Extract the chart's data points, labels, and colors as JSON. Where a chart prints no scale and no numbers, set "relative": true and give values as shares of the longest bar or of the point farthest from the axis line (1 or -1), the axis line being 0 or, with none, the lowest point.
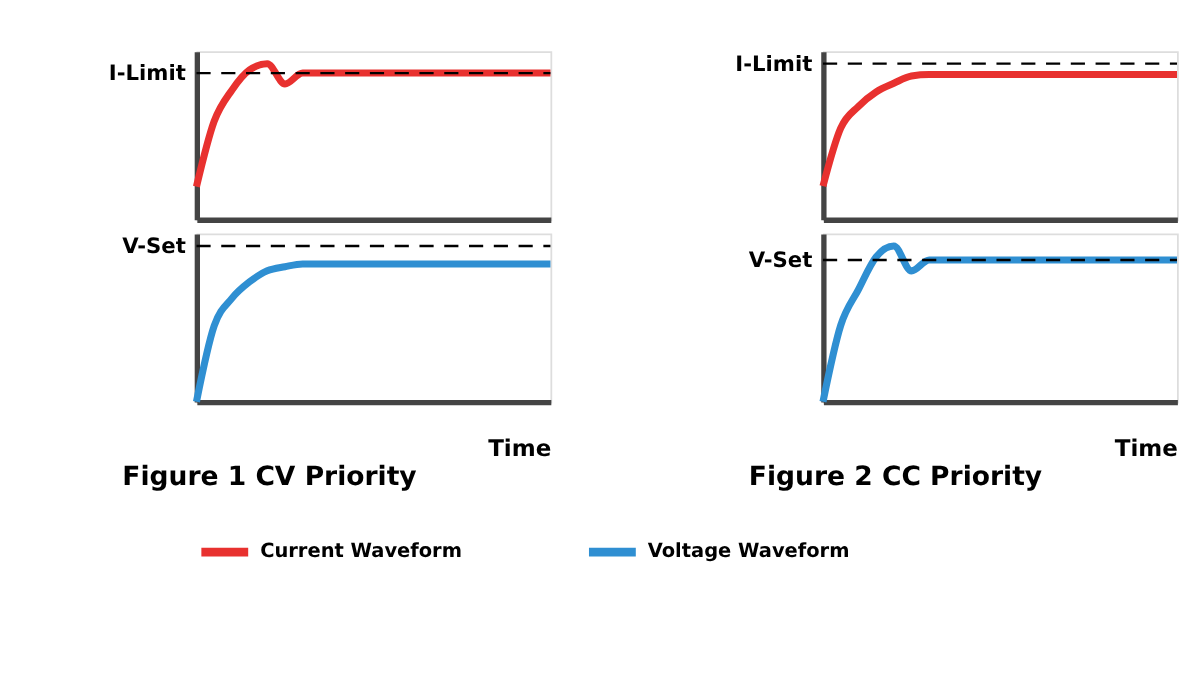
{
  "chart_data": [
    {
      "type": "line",
      "relative": true,
      "tick_labels": false,
      "grid": false,
      "legend": "bottom",
      "categories": [
        null,
        null,
        null,
        null,
        null,
        null,
        null,
        null,
        null,
        null,
        null,
        null,
        null,
        null,
        null,
        null,
        null,
        null,
        null,
        null,
        null
      ],
      "series": [
        {
          "name": "Current Waveform",
          "color": "#e8312f",
          "values": [
            0.21,
            0.63,
            0.83,
            0.96,
            1.0,
            0.87,
            0.94,
            0.94,
            0.94,
            0.94,
            0.94,
            0.94,
            0.94,
            0.94,
            0.94,
            0.94,
            0.94,
            0.94,
            0.94,
            0.94,
            0.94
          ]
        }
      ],
      "ref_lines": [
        {
          "axis": "y",
          "value": 0.94,
          "label": "I-Limit",
          "color": "#000000",
          "line_style": "dashed"
        }
      ]
    },
    {
      "type": "line",
      "relative": true,
      "tick_labels": false,
      "grid": false,
      "categories": [
        null,
        null,
        null,
        null,
        null,
        null,
        null,
        null,
        null,
        null,
        null,
        null,
        null,
        null,
        null,
        null,
        null,
        null,
        null,
        null,
        null
      ],
      "series": [
        {
          "name": "Current Waveform",
          "color": "#e8312f",
          "values": [
            0.23,
            0.63,
            0.78,
            0.88,
            0.94,
            0.99,
            1.0,
            1.0,
            1.0,
            1.0,
            1.0,
            1.0,
            1.0,
            1.0,
            1.0,
            1.0,
            1.0,
            1.0,
            1.0,
            1.0,
            1.0
          ]
        }
      ],
      "ref_lines": [
        {
          "axis": "y",
          "value": 1.075,
          "label": "I-Limit",
          "color": "#000000",
          "line_style": "dashed"
        }
      ]
    },
    {
      "type": "line",
      "relative": true,
      "tick_labels": false,
      "grid": false,
      "legend": "bottom",
      "title": "Figure 1  CV Priority",
      "xlabel": "Time",
      "categories": [
        null,
        null,
        null,
        null,
        null,
        null,
        null,
        null,
        null,
        null,
        null,
        null,
        null,
        null,
        null,
        null,
        null,
        null,
        null,
        null,
        null
      ],
      "series": [
        {
          "name": "Voltage Waveform",
          "color": "#2f8fd2",
          "values": [
            0.0,
            0.55,
            0.75,
            0.87,
            0.95,
            0.98,
            1.0,
            1.0,
            1.0,
            1.0,
            1.0,
            1.0,
            1.0,
            1.0,
            1.0,
            1.0,
            1.0,
            1.0,
            1.0,
            1.0,
            1.0
          ]
        }
      ],
      "ref_lines": [
        {
          "axis": "y",
          "value": 1.13,
          "label": "V-Set",
          "color": "#000000",
          "line_style": "dashed"
        }
      ]
    },
    {
      "type": "line",
      "relative": true,
      "tick_labels": false,
      "grid": false,
      "title": "Figure 2  CC Priority",
      "xlabel": "Time",
      "categories": [
        null,
        null,
        null,
        null,
        null,
        null,
        null,
        null,
        null,
        null,
        null,
        null,
        null,
        null,
        null,
        null,
        null,
        null,
        null,
        null,
        null
      ],
      "series": [
        {
          "name": "Voltage Waveform",
          "color": "#2f8fd2",
          "values": [
            0.0,
            0.49,
            0.72,
            0.93,
            1.0,
            0.84,
            0.91,
            0.91,
            0.91,
            0.91,
            0.91,
            0.91,
            0.91,
            0.91,
            0.91,
            0.91,
            0.91,
            0.91,
            0.91,
            0.91,
            0.91
          ]
        }
      ],
      "ref_lines": [
        {
          "axis": "y",
          "value": 0.91,
          "label": "V-Set",
          "color": "#000000",
          "line_style": "dashed"
        }
      ]
    }
  ]
}
